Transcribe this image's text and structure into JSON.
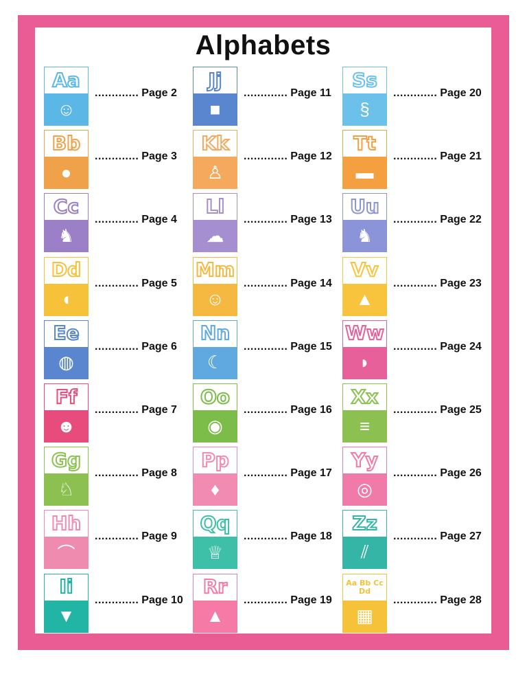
{
  "title": "Alphabets",
  "border_color": "#e95c94",
  "leader": ".............",
  "entries": [
    {
      "letters": "Aa",
      "page": "Page 2",
      "color": "#5bb8e6",
      "icon": "astronaut-icon",
      "glyph": "☺"
    },
    {
      "letters": "Bb",
      "page": "Page 3",
      "color": "#f0a24a",
      "icon": "ball-icon",
      "glyph": "●"
    },
    {
      "letters": "Cc",
      "page": "Page 4",
      "color": "#9b7fc7",
      "icon": "cow-icon",
      "glyph": "♞"
    },
    {
      "letters": "Dd",
      "page": "Page 5",
      "color": "#f5c23a",
      "icon": "duck-icon",
      "glyph": "◖"
    },
    {
      "letters": "Ee",
      "page": "Page 6",
      "color": "#5a86cf",
      "icon": "earth-icon",
      "glyph": "◍"
    },
    {
      "letters": "Ff",
      "page": "Page 7",
      "color": "#e74c7c",
      "icon": "frog-icon",
      "glyph": "☻"
    },
    {
      "letters": "Gg",
      "page": "Page 8",
      "color": "#8cc152",
      "icon": "giraffe-icon",
      "glyph": "♘"
    },
    {
      "letters": "Hh",
      "page": "Page 9",
      "color": "#f08bb0",
      "icon": "hat-icon",
      "glyph": "⌒"
    },
    {
      "letters": "Ii",
      "page": "Page 10",
      "color": "#22b5a5",
      "icon": "ice-cream-icon",
      "glyph": "▼"
    },
    {
      "letters": "Jj",
      "page": "Page 11",
      "color": "#5a86cf",
      "icon": "jam-icon",
      "glyph": "■"
    },
    {
      "letters": "Kk",
      "page": "Page 12",
      "color": "#f5a95c",
      "icon": "kangaroo-icon",
      "glyph": "♙"
    },
    {
      "letters": "Ll",
      "page": "Page 13",
      "color": "#a58fd0",
      "icon": "lamb-icon",
      "glyph": "☁"
    },
    {
      "letters": "Mm",
      "page": "Page 14",
      "color": "#f5b942",
      "icon": "monkey-icon",
      "glyph": "☺"
    },
    {
      "letters": "Nn",
      "page": "Page 15",
      "color": "#5fa8e0",
      "icon": "night-icon",
      "glyph": "☾"
    },
    {
      "letters": "Oo",
      "page": "Page 16",
      "color": "#7cbd4a",
      "icon": "owl-icon",
      "glyph": "◉"
    },
    {
      "letters": "Pp",
      "page": "Page 17",
      "color": "#f28bb2",
      "icon": "parrot-icon",
      "glyph": "♦"
    },
    {
      "letters": "Qq",
      "page": "Page 18",
      "color": "#3dbfa8",
      "icon": "queen-icon",
      "glyph": "♕"
    },
    {
      "letters": "Rr",
      "page": "Page 19",
      "color": "#f57aa6",
      "icon": "rocket-icon",
      "glyph": "▲"
    },
    {
      "letters": "Ss",
      "page": "Page 20",
      "color": "#6bc1ea",
      "icon": "snake-icon",
      "glyph": "§"
    },
    {
      "letters": "Tt",
      "page": "Page 21",
      "color": "#f5a040",
      "icon": "train-icon",
      "glyph": "▬"
    },
    {
      "letters": "Uu",
      "page": "Page 22",
      "color": "#8b94d9",
      "icon": "unicorn-icon",
      "glyph": "♞"
    },
    {
      "letters": "Vv",
      "page": "Page 23",
      "color": "#f8c43e",
      "icon": "volcano-icon",
      "glyph": "▲"
    },
    {
      "letters": "Ww",
      "page": "Page 24",
      "color": "#e8609a",
      "icon": "whale-icon",
      "glyph": "◗"
    },
    {
      "letters": "Xx",
      "page": "Page 25",
      "color": "#8cc152",
      "icon": "xylophone-icon",
      "glyph": "≡"
    },
    {
      "letters": "Yy",
      "page": "Page 26",
      "color": "#f07aa8",
      "icon": "yoyo-icon",
      "glyph": "◎"
    },
    {
      "letters": "Zz",
      "page": "Page 27",
      "color": "#35b5a5",
      "icon": "zipper-icon",
      "glyph": "⫽"
    },
    {
      "letters": "Aa Bb Cc Dd",
      "page": "Page 28",
      "color": "#f5c23a",
      "icon": "alphabet-collage-icon",
      "glyph": "▦"
    }
  ]
}
